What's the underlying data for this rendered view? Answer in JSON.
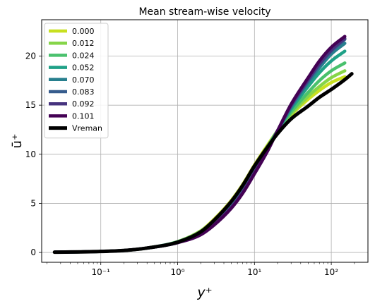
{
  "chart_data": {
    "type": "line",
    "title": "Mean stream-wise velocity",
    "xlabel": "y⁺",
    "ylabel": "ū⁺",
    "xscale": "log",
    "xlim": [
      0.017,
      300
    ],
    "ylim": [
      -1,
      23.7
    ],
    "x_ticks": [
      {
        "value": 0.1,
        "label": "10⁻¹"
      },
      {
        "value": 1,
        "label": "10⁰"
      },
      {
        "value": 10,
        "label": "10¹"
      },
      {
        "value": 100,
        "label": "10²"
      }
    ],
    "y_ticks": [
      0,
      5,
      10,
      15,
      20
    ],
    "grid": true,
    "legend_position": "top-left",
    "series": [
      {
        "name": "0.000",
        "color": "#c8e020",
        "x": [
          0.025,
          0.1,
          0.2,
          0.4,
          1,
          2,
          3,
          5,
          7,
          10,
          15,
          20,
          30,
          50,
          70,
          100,
          150
        ],
        "y": [
          0.03,
          0.1,
          0.2,
          0.45,
          1.1,
          2.2,
          3.4,
          5.3,
          6.9,
          8.9,
          11.0,
          12.4,
          14.0,
          15.6,
          16.5,
          17.3,
          17.9
        ]
      },
      {
        "name": "0.012",
        "color": "#86d549",
        "x": [
          0.025,
          0.1,
          0.2,
          0.4,
          1,
          2,
          3,
          5,
          7,
          10,
          15,
          20,
          30,
          50,
          70,
          100,
          150
        ],
        "y": [
          0.03,
          0.1,
          0.2,
          0.45,
          1.1,
          2.2,
          3.3,
          5.2,
          6.8,
          8.8,
          10.9,
          12.4,
          14.1,
          15.9,
          16.9,
          17.8,
          18.5
        ]
      },
      {
        "name": "0.024",
        "color": "#4ac16d",
        "x": [
          0.025,
          0.1,
          0.2,
          0.4,
          1,
          2,
          3,
          5,
          7,
          10,
          15,
          20,
          30,
          50,
          70,
          100,
          150
        ],
        "y": [
          0.03,
          0.1,
          0.2,
          0.45,
          1.1,
          2.1,
          3.2,
          5.0,
          6.6,
          8.6,
          10.8,
          12.4,
          14.3,
          16.3,
          17.5,
          18.5,
          19.3
        ]
      },
      {
        "name": "0.052",
        "color": "#1fa187",
        "x": [
          0.025,
          0.1,
          0.2,
          0.4,
          1,
          2,
          3,
          5,
          7,
          10,
          15,
          20,
          30,
          50,
          70,
          100,
          150
        ],
        "y": [
          0.03,
          0.1,
          0.2,
          0.45,
          1.05,
          2.0,
          3.1,
          4.8,
          6.4,
          8.4,
          10.7,
          12.4,
          14.6,
          16.9,
          18.3,
          19.5,
          20.5
        ]
      },
      {
        "name": "0.070",
        "color": "#277f8e",
        "x": [
          0.025,
          0.1,
          0.2,
          0.4,
          1,
          2,
          3,
          5,
          7,
          10,
          15,
          20,
          30,
          50,
          70,
          100,
          150
        ],
        "y": [
          0.03,
          0.1,
          0.2,
          0.45,
          1.05,
          2.0,
          3.0,
          4.7,
          6.3,
          8.3,
          10.6,
          12.4,
          14.8,
          17.3,
          18.8,
          20.2,
          21.3
        ]
      },
      {
        "name": "0.083",
        "color": "#365c8d",
        "x": [
          0.025,
          0.1,
          0.2,
          0.4,
          1,
          2,
          3,
          5,
          7,
          10,
          15,
          20,
          30,
          50,
          70,
          100,
          150
        ],
        "y": [
          0.03,
          0.1,
          0.2,
          0.45,
          1.0,
          1.9,
          2.9,
          4.6,
          6.2,
          8.2,
          10.5,
          12.4,
          14.9,
          17.5,
          19.1,
          20.5,
          21.7
        ]
      },
      {
        "name": "0.092",
        "color": "#46337e",
        "x": [
          0.025,
          0.1,
          0.2,
          0.4,
          1,
          2,
          3,
          5,
          7,
          10,
          15,
          20,
          30,
          50,
          70,
          100,
          150
        ],
        "y": [
          0.03,
          0.1,
          0.2,
          0.45,
          1.0,
          1.9,
          2.9,
          4.6,
          6.1,
          8.1,
          10.5,
          12.4,
          15.0,
          17.6,
          19.2,
          20.6,
          21.8
        ]
      },
      {
        "name": "0.101",
        "color": "#440154",
        "x": [
          0.025,
          0.1,
          0.2,
          0.4,
          1,
          2,
          3,
          5,
          7,
          10,
          15,
          20,
          30,
          50,
          70,
          100,
          150
        ],
        "y": [
          0.03,
          0.1,
          0.2,
          0.45,
          1.0,
          1.8,
          2.8,
          4.5,
          6.0,
          8.0,
          10.4,
          12.4,
          15.1,
          17.8,
          19.5,
          20.9,
          22.0
        ]
      },
      {
        "name": "Vreman",
        "color": "#000000",
        "x": [
          0.025,
          0.1,
          0.2,
          0.4,
          1,
          2,
          3,
          5,
          7,
          10,
          15,
          20,
          30,
          50,
          70,
          100,
          150,
          185
        ],
        "y": [
          0.03,
          0.1,
          0.2,
          0.45,
          1.05,
          2.1,
          3.3,
          5.2,
          6.8,
          8.8,
          10.8,
          12.1,
          13.6,
          14.9,
          15.8,
          16.6,
          17.6,
          18.2
        ]
      }
    ]
  }
}
